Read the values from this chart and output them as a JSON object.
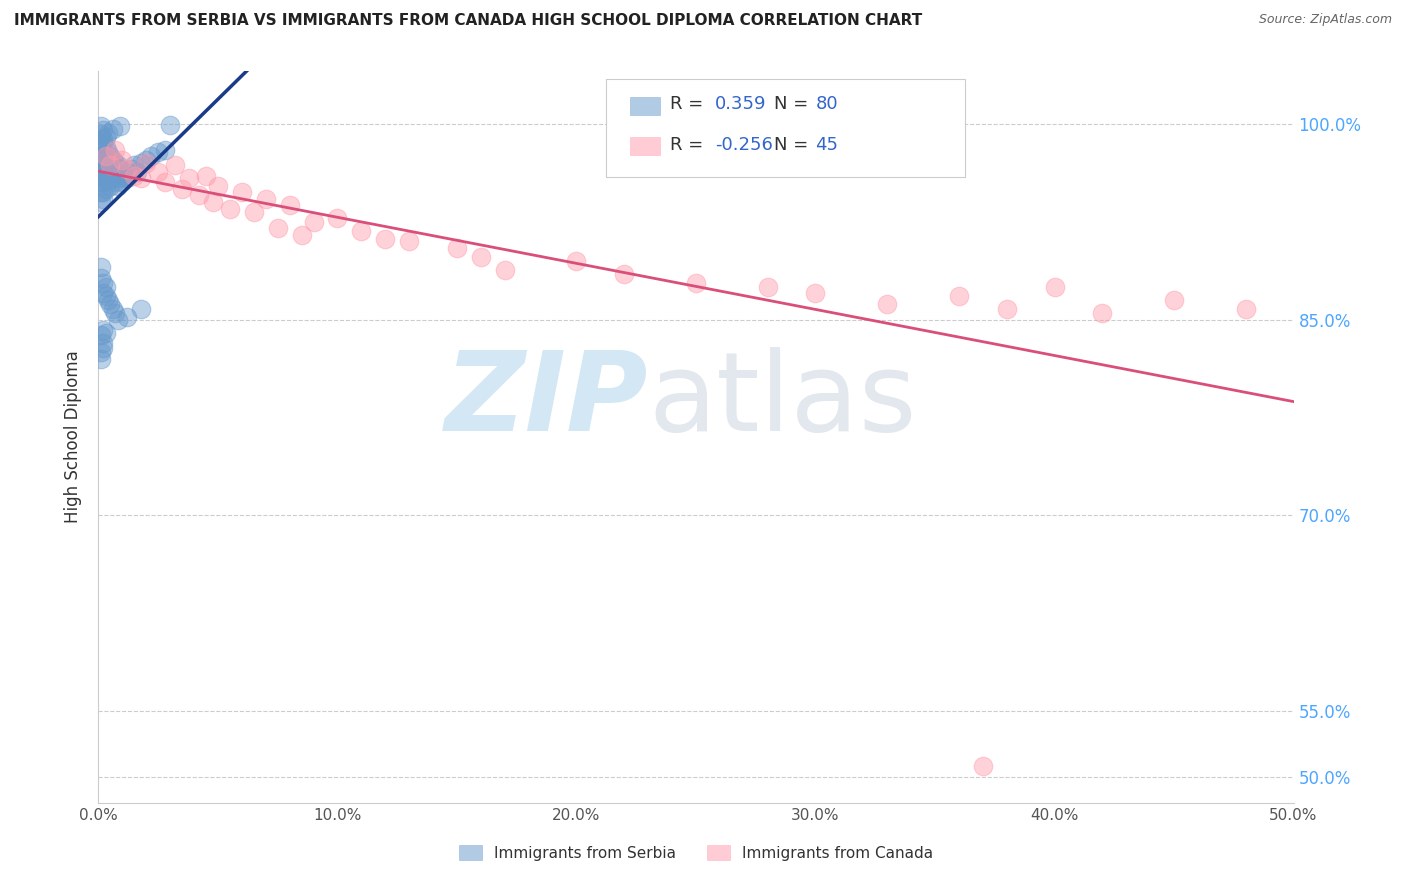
{
  "title": "IMMIGRANTS FROM SERBIA VS IMMIGRANTS FROM CANADA HIGH SCHOOL DIPLOMA CORRELATION CHART",
  "source": "Source: ZipAtlas.com",
  "ylabel": "High School Diploma",
  "serbia_R": 0.359,
  "serbia_N": 80,
  "canada_R": -0.256,
  "canada_N": 45,
  "serbia_color": "#6699CC",
  "canada_color": "#FF99AA",
  "serbia_line_color": "#1a3a8a",
  "canada_line_color": "#d94f7a",
  "legend_label_serbia": "Immigrants from Serbia",
  "legend_label_canada": "Immigrants from Canada",
  "xlim": [
    0.0,
    0.5
  ],
  "ylim": [
    0.48,
    1.04
  ],
  "yticks": [
    0.5,
    0.55,
    0.7,
    0.85,
    1.0
  ],
  "ytick_labels": [
    "50.0%",
    "55.0%",
    "70.0%",
    "85.0%",
    "100.0%"
  ],
  "xticks": [
    0.0,
    0.1,
    0.2,
    0.3,
    0.4,
    0.5
  ],
  "xtick_labels": [
    "0.0%",
    "10.0%",
    "20.0%",
    "30.0%",
    "40.0%",
    "50.0%"
  ],
  "serbia_x": [
    0.001,
    0.001,
    0.001,
    0.001,
    0.001,
    0.001,
    0.002,
    0.002,
    0.002,
    0.002,
    0.002,
    0.002,
    0.002,
    0.003,
    0.003,
    0.003,
    0.003,
    0.003,
    0.004,
    0.004,
    0.004,
    0.004,
    0.005,
    0.005,
    0.005,
    0.005,
    0.006,
    0.006,
    0.006,
    0.007,
    0.007,
    0.007,
    0.008,
    0.008,
    0.008,
    0.009,
    0.009,
    0.01,
    0.01,
    0.011,
    0.012,
    0.013,
    0.014,
    0.015,
    0.016,
    0.018,
    0.02,
    0.022,
    0.025,
    0.028,
    0.001,
    0.001,
    0.002,
    0.002,
    0.003,
    0.003,
    0.004,
    0.005,
    0.006,
    0.007,
    0.001,
    0.002,
    0.002,
    0.001,
    0.001,
    0.002,
    0.003,
    0.008,
    0.012,
    0.018,
    0.001,
    0.001,
    0.001,
    0.002,
    0.002,
    0.003,
    0.004,
    0.006,
    0.009,
    0.03
  ],
  "serbia_y": [
    0.975,
    0.968,
    0.96,
    0.955,
    0.948,
    0.94,
    0.985,
    0.978,
    0.97,
    0.962,
    0.955,
    0.948,
    0.942,
    0.982,
    0.975,
    0.965,
    0.958,
    0.95,
    0.978,
    0.97,
    0.963,
    0.956,
    0.975,
    0.968,
    0.96,
    0.952,
    0.972,
    0.965,
    0.958,
    0.97,
    0.963,
    0.955,
    0.968,
    0.96,
    0.952,
    0.965,
    0.958,
    0.963,
    0.955,
    0.96,
    0.958,
    0.962,
    0.965,
    0.968,
    0.963,
    0.97,
    0.972,
    0.975,
    0.978,
    0.98,
    0.89,
    0.882,
    0.878,
    0.87,
    0.875,
    0.868,
    0.865,
    0.862,
    0.858,
    0.855,
    0.838,
    0.832,
    0.842,
    0.825,
    0.82,
    0.828,
    0.84,
    0.85,
    0.852,
    0.858,
    0.992,
    0.985,
    0.998,
    0.988,
    0.995,
    0.99,
    0.993,
    0.996,
    0.998,
    0.999
  ],
  "canada_x": [
    0.003,
    0.005,
    0.007,
    0.01,
    0.012,
    0.015,
    0.018,
    0.02,
    0.025,
    0.028,
    0.032,
    0.035,
    0.038,
    0.042,
    0.045,
    0.048,
    0.05,
    0.055,
    0.06,
    0.065,
    0.07,
    0.075,
    0.08,
    0.085,
    0.09,
    0.1,
    0.11,
    0.12,
    0.13,
    0.15,
    0.16,
    0.17,
    0.2,
    0.22,
    0.25,
    0.28,
    0.3,
    0.33,
    0.36,
    0.38,
    0.4,
    0.42,
    0.45,
    0.48,
    0.37
  ],
  "canada_y": [
    0.975,
    0.968,
    0.98,
    0.972,
    0.965,
    0.96,
    0.958,
    0.97,
    0.963,
    0.955,
    0.968,
    0.95,
    0.958,
    0.945,
    0.96,
    0.94,
    0.952,
    0.935,
    0.948,
    0.932,
    0.942,
    0.92,
    0.938,
    0.915,
    0.925,
    0.928,
    0.918,
    0.912,
    0.91,
    0.905,
    0.898,
    0.888,
    0.895,
    0.885,
    0.878,
    0.875,
    0.87,
    0.862,
    0.868,
    0.858,
    0.875,
    0.855,
    0.865,
    0.858,
    0.508
  ]
}
